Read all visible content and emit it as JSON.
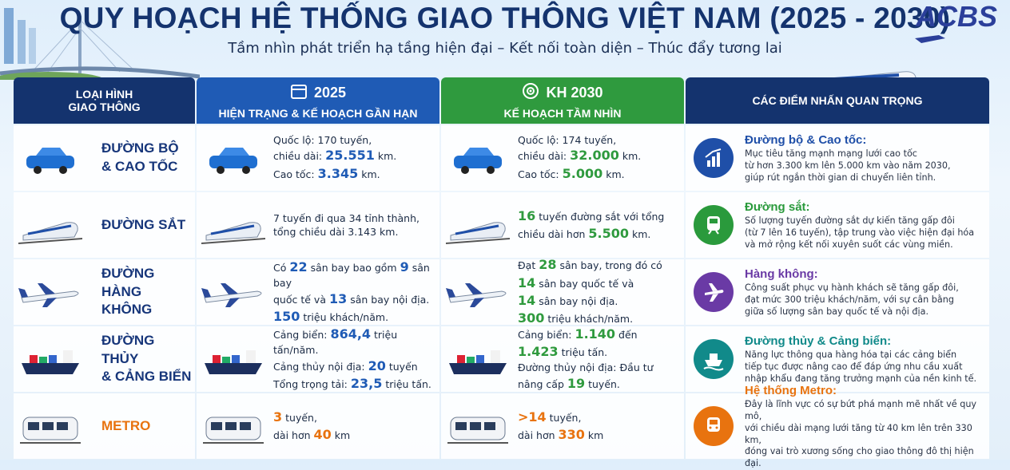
{
  "header": {
    "title": "QUY HOẠCH HỆ THỐNG GIAO THÔNG VIỆT NAM (2025 - 2030)",
    "subtitle": "Tầm nhìn phát triển hạ tầng hiện đại – Kết nối toàn diện – Thúc đẩy tương lai",
    "logo": "ACBS"
  },
  "columns": {
    "type": {
      "title": "LOẠI HÌNH GIAO THÔNG",
      "color": "#14336e"
    },
    "current": {
      "year": "2025",
      "title": "HIỆN TRẠNG & KẾ HOẠCH GẦN HẠN",
      "color": "#1f5bb5"
    },
    "plan": {
      "year": "KH 2030",
      "title": "KẾ HOẠCH TẦM NHÌN",
      "color": "#2f9a3e"
    },
    "highlights": {
      "title": "CÁC ĐIỂM NHẤN QUAN TRỌNG",
      "color": "#14336e"
    }
  },
  "rows": [
    {
      "label": [
        "ĐƯỜNG BỘ",
        "& CAO TỐC"
      ],
      "label_color": "#17367a",
      "color": "#1f4fa8",
      "current": [
        [
          "Quốc lộ: 170 tuyến,"
        ],
        [
          "chiều dài: ",
          {
            "strong": "25.551"
          },
          " km."
        ],
        [
          "Cao tốc: ",
          {
            "strong": "3.345"
          },
          " km."
        ]
      ],
      "plan": [
        [
          "Quốc lộ: 174 tuyến,"
        ],
        [
          "chiều dài: ",
          {
            "strong": "32.000"
          },
          " km."
        ],
        [
          "Cao tốc: ",
          {
            "strong": "5.000"
          },
          " km."
        ]
      ],
      "highlight": {
        "title": "Đường bộ & Cao tốc:",
        "text": [
          "Mục tiêu tăng mạnh mạng lưới cao tốc",
          "từ hơn 3.300 km lên 5.000 km vào năm 2030,",
          "giúp rút ngắn thời gian di chuyển liên tỉnh."
        ]
      }
    },
    {
      "label": [
        "ĐƯỜNG SẮT"
      ],
      "label_color": "#17367a",
      "color": "#2a9a3c",
      "current": [
        [
          "7 tuyến đi qua 34 tỉnh thành,"
        ],
        [
          "tổng chiều dài 3.143 km."
        ]
      ],
      "plan": [
        [
          {
            "strong": "16"
          },
          " tuyến đường sắt với tổng"
        ],
        [
          "chiều dài hơn ",
          {
            "strong": "5.500"
          },
          " km."
        ]
      ],
      "highlight": {
        "title": "Đường sắt:",
        "text": [
          "Số lượng tuyến đường sắt dự kiến tăng gấp đôi",
          "(từ 7 lên 16 tuyến), tập trung vào việc hiện đại hóa",
          "và mở rộng kết nối xuyên suốt các vùng miền."
        ]
      }
    },
    {
      "label": [
        "ĐƯỜNG HÀNG",
        "KHÔNG"
      ],
      "label_color": "#17367a",
      "color": "#6a3aa5",
      "current": [
        [
          "Có ",
          {
            "strong": "22"
          },
          " sân bay bao gồm ",
          {
            "strong": "9"
          },
          " sân bay"
        ],
        [
          "quốc tế và ",
          {
            "strong": "13"
          },
          " sân bay nội địa."
        ],
        [
          {
            "strong": "150"
          },
          " triệu khách/năm."
        ]
      ],
      "plan": [
        [
          "Đạt ",
          {
            "strong": "28"
          },
          " sân bay, trong đó có"
        ],
        [
          {
            "strong": "14"
          },
          " sân bay quốc tế và"
        ],
        [
          {
            "strong": "14"
          },
          " sân bay nội địa."
        ],
        [
          {
            "strong": "300"
          },
          " triệu khách/năm."
        ]
      ],
      "highlight": {
        "title": "Hàng không:",
        "text": [
          "Công suất phục vụ hành khách sẽ tăng gấp đôi,",
          "đạt mức 300 triệu khách/năm, với sự cân bằng",
          "giữa số lượng sân bay quốc tế và nội địa."
        ]
      }
    },
    {
      "label": [
        "ĐƯỜNG THỦY",
        "& CẢNG BIỂN"
      ],
      "label_color": "#17367a",
      "color": "#118a8a",
      "current": [
        [
          "Cảng biển: ",
          {
            "strong": "864,4"
          },
          " triệu tấn/năm."
        ],
        [
          "Cảng thủy nội địa: ",
          {
            "strong": "20"
          },
          " tuyến"
        ],
        [
          "Tổng trọng tải: ",
          {
            "strong": "23,5"
          },
          " triệu tấn."
        ]
      ],
      "plan": [
        [
          "Cảng biển: ",
          {
            "strong": "1.140"
          },
          " đến"
        ],
        [
          {
            "strong": "1.423"
          },
          " triệu tấn."
        ],
        [
          "Đường thủy nội địa: Đầu tư"
        ],
        [
          "nâng cấp ",
          {
            "strong": "19"
          },
          " tuyến."
        ]
      ],
      "highlight": {
        "title": "Đường thủy & Cảng biển:",
        "text": [
          "Năng lực thông qua hàng hóa tại các cảng biển",
          "tiếp tục được nâng cao để đáp ứng nhu cầu xuất",
          "nhập khẩu đang tăng trưởng mạnh của nền kinh tế."
        ]
      }
    },
    {
      "label": [
        "METRO"
      ],
      "label_color": "#e8730f",
      "color": "#e8730f",
      "current": [
        [
          {
            "strong": "3"
          },
          " tuyến,"
        ],
        [
          "dài hơn ",
          {
            "strong": "40"
          },
          " km"
        ]
      ],
      "plan": [
        [
          {
            "strong": ">14"
          },
          " tuyến,"
        ],
        [
          "dài hơn ",
          {
            "strong": "330"
          },
          " km"
        ]
      ],
      "highlight": {
        "title": "Hệ thống Metro:",
        "text": [
          "Đây là lĩnh vực có sự bứt phá mạnh mẽ nhất về quy mô,",
          "với chiều dài mạng lưới tăng từ 40 km lên trên 330 km,",
          "đóng vai trò xương sống cho giao thông đô thị hiện đại."
        ]
      }
    }
  ]
}
